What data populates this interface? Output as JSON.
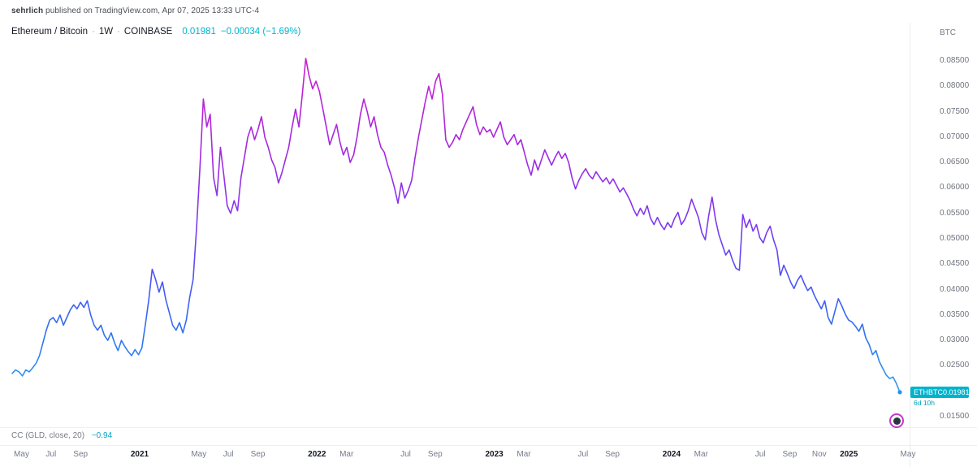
{
  "attribution": {
    "username": "sehrlich",
    "rest": " published on TradingView.com, Apr 07, 2025 13:33 UTC-4"
  },
  "header": {
    "symbol_title": "Ethereum / Bitcoin",
    "separator": "·",
    "timeframe": "1W",
    "exchange": "COINBASE",
    "last_price": "0.01981",
    "change": "−0.00034 (−1.69%)",
    "unit": "BTC"
  },
  "price_badge": {
    "symbol": "ETHBTC",
    "price": "0.01981",
    "countdown": "6d 10h"
  },
  "indicator": {
    "label": "CC (GLD, close, 20)",
    "value": "−0.94"
  },
  "price_scale": {
    "ticks": [
      "0.08500",
      "0.08000",
      "0.07500",
      "0.07000",
      "0.06500",
      "0.06000",
      "0.05500",
      "0.05000",
      "0.04500",
      "0.04000",
      "0.03500",
      "0.03000",
      "0.02500",
      "0.02000",
      "0.01500"
    ]
  },
  "time_axis": {
    "labels": [
      {
        "text": "May",
        "year": 2020,
        "month": 5,
        "major": false
      },
      {
        "text": "Jul",
        "year": 2020,
        "month": 7,
        "major": false
      },
      {
        "text": "Sep",
        "year": 2020,
        "month": 9,
        "major": false
      },
      {
        "text": "2021",
        "year": 2021,
        "month": 1,
        "major": true
      },
      {
        "text": "May",
        "year": 2021,
        "month": 5,
        "major": false
      },
      {
        "text": "Jul",
        "year": 2021,
        "month": 7,
        "major": false
      },
      {
        "text": "Sep",
        "year": 2021,
        "month": 9,
        "major": false
      },
      {
        "text": "2022",
        "year": 2022,
        "month": 1,
        "major": true
      },
      {
        "text": "Mar",
        "year": 2022,
        "month": 3,
        "major": false
      },
      {
        "text": "Jul",
        "year": 2022,
        "month": 7,
        "major": false
      },
      {
        "text": "Sep",
        "year": 2022,
        "month": 9,
        "major": false
      },
      {
        "text": "2023",
        "year": 2023,
        "month": 1,
        "major": true
      },
      {
        "text": "Mar",
        "year": 2023,
        "month": 3,
        "major": false
      },
      {
        "text": "Jul",
        "year": 2023,
        "month": 7,
        "major": false
      },
      {
        "text": "Sep",
        "year": 2023,
        "month": 9,
        "major": false
      },
      {
        "text": "2024",
        "year": 2024,
        "month": 1,
        "major": true
      },
      {
        "text": "Mar",
        "year": 2024,
        "month": 3,
        "major": false
      },
      {
        "text": "Jul",
        "year": 2024,
        "month": 7,
        "major": false
      },
      {
        "text": "Sep",
        "year": 2024,
        "month": 9,
        "major": false
      },
      {
        "text": "Nov",
        "year": 2024,
        "month": 11,
        "major": false
      },
      {
        "text": "2025",
        "year": 2025,
        "month": 1,
        "major": true
      },
      {
        "text": "May",
        "year": 2025,
        "month": 5,
        "major": false
      }
    ]
  },
  "colors": {
    "accent_cyan": "#00b3cc",
    "badge_bg": "#00b3cc",
    "last_dot": "#2196f3",
    "line_gradient": [
      "#c81ed2",
      "#a32ae0",
      "#7b3bf0",
      "#4b55f5",
      "#2e74f0",
      "#35a2f0"
    ]
  },
  "chart_data": {
    "type": "line",
    "title": "Ethereum / Bitcoin",
    "symbol": "ETHBTC",
    "exchange": "COINBASE",
    "timeframe": "1W",
    "unit": "BTC",
    "xlabel": "",
    "ylabel": "BTC",
    "grid": false,
    "legend_position": "none",
    "start_date": "2020-04-13",
    "interval": "1W",
    "xlim": [
      "2020-04-13",
      "2025-05-05"
    ],
    "ylim": [
      0.015,
      0.085
    ],
    "y_ticks": [
      0.085,
      0.08,
      0.075,
      0.07,
      0.065,
      0.06,
      0.055,
      0.05,
      0.045,
      0.04,
      0.035,
      0.03,
      0.025,
      0.02,
      0.015
    ],
    "last_price": 0.01981,
    "change": -0.00034,
    "change_pct": -1.69,
    "indicator": {
      "name": "Correlation Coefficient",
      "params": "GLD, close, 20",
      "value": -0.94
    },
    "values": [
      0.0235,
      0.0242,
      0.0238,
      0.023,
      0.0242,
      0.0238,
      0.0246,
      0.0255,
      0.027,
      0.0295,
      0.032,
      0.034,
      0.0345,
      0.0335,
      0.035,
      0.033,
      0.0345,
      0.036,
      0.037,
      0.0362,
      0.0375,
      0.0365,
      0.0378,
      0.035,
      0.033,
      0.032,
      0.033,
      0.031,
      0.03,
      0.0315,
      0.0295,
      0.028,
      0.03,
      0.0288,
      0.0278,
      0.027,
      0.0282,
      0.0272,
      0.0285,
      0.033,
      0.038,
      0.044,
      0.042,
      0.0395,
      0.0415,
      0.038,
      0.0355,
      0.033,
      0.032,
      0.0335,
      0.0315,
      0.034,
      0.0385,
      0.042,
      0.052,
      0.064,
      0.0775,
      0.072,
      0.0745,
      0.062,
      0.0585,
      0.068,
      0.0625,
      0.0565,
      0.055,
      0.0575,
      0.0555,
      0.062,
      0.066,
      0.07,
      0.072,
      0.0695,
      0.0715,
      0.074,
      0.07,
      0.068,
      0.0655,
      0.064,
      0.061,
      0.063,
      0.0655,
      0.068,
      0.072,
      0.0755,
      0.072,
      0.0785,
      0.0855,
      0.082,
      0.0795,
      0.081,
      0.079,
      0.0755,
      0.072,
      0.0685,
      0.0705,
      0.0725,
      0.069,
      0.0665,
      0.068,
      0.065,
      0.0665,
      0.07,
      0.0745,
      0.0775,
      0.075,
      0.072,
      0.074,
      0.0705,
      0.068,
      0.067,
      0.0645,
      0.0625,
      0.06,
      0.057,
      0.061,
      0.058,
      0.0595,
      0.0615,
      0.066,
      0.07,
      0.0735,
      0.077,
      0.08,
      0.0775,
      0.081,
      0.0825,
      0.0785,
      0.0695,
      0.068,
      0.069,
      0.0705,
      0.0695,
      0.0715,
      0.073,
      0.0745,
      0.076,
      0.0725,
      0.0705,
      0.072,
      0.071,
      0.0715,
      0.07,
      0.0715,
      0.073,
      0.07,
      0.0685,
      0.0695,
      0.0705,
      0.0685,
      0.0695,
      0.067,
      0.0645,
      0.0625,
      0.0655,
      0.0635,
      0.0655,
      0.0675,
      0.066,
      0.0645,
      0.066,
      0.0672,
      0.0658,
      0.0668,
      0.065,
      0.062,
      0.0598,
      0.0615,
      0.0628,
      0.0638,
      0.0625,
      0.0618,
      0.0632,
      0.0622,
      0.0612,
      0.062,
      0.0608,
      0.0618,
      0.0605,
      0.0592,
      0.06,
      0.0588,
      0.0575,
      0.0558,
      0.0545,
      0.056,
      0.0548,
      0.0565,
      0.054,
      0.0528,
      0.0542,
      0.0528,
      0.0518,
      0.0532,
      0.0522,
      0.054,
      0.0552,
      0.0528,
      0.0538,
      0.0555,
      0.0578,
      0.056,
      0.0542,
      0.0512,
      0.0498,
      0.0545,
      0.0582,
      0.0538,
      0.0508,
      0.0488,
      0.0468,
      0.0478,
      0.0458,
      0.0442,
      0.0438,
      0.0548,
      0.0522,
      0.0538,
      0.0515,
      0.0528,
      0.0502,
      0.0492,
      0.0512,
      0.0525,
      0.0498,
      0.0478,
      0.0428,
      0.0448,
      0.0432,
      0.0415,
      0.0402,
      0.0418,
      0.0428,
      0.0412,
      0.0398,
      0.0405,
      0.0388,
      0.0375,
      0.0362,
      0.0378,
      0.0345,
      0.0332,
      0.0358,
      0.0382,
      0.0368,
      0.0352,
      0.034,
      0.0336,
      0.0328,
      0.0318,
      0.0332,
      0.0305,
      0.0292,
      0.0272,
      0.028,
      0.0258,
      0.0245,
      0.0232,
      0.0225,
      0.0228,
      0.0215,
      0.01981
    ]
  }
}
